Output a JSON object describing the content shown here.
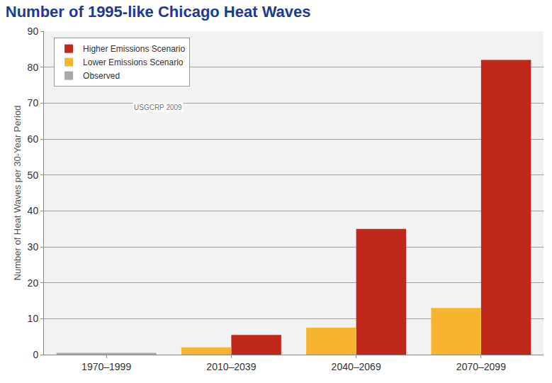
{
  "chart_data": {
    "type": "bar",
    "title": "Number of 1995-like Chicago Heat Waves",
    "y_label": "Number of Heat Waves per 30-Year Period",
    "categories": [
      "1970–1999",
      "2010–2039",
      "2040–2069",
      "2070–2099"
    ],
    "series": [
      {
        "name": "Higher Emissions Scenario",
        "color": "#c0281c",
        "values": [
          null,
          5.5,
          35,
          82
        ]
      },
      {
        "name": "Lower Emissions Scenario",
        "color": "#f7b52f",
        "values": [
          null,
          2,
          7.5,
          13
        ]
      },
      {
        "name": "Observed",
        "color": "#a8a8a8",
        "values": [
          0.5,
          null,
          null,
          null
        ]
      }
    ],
    "annotations": [
      "USGCRP 2009"
    ],
    "ylim": [
      0,
      90
    ],
    "yticks": [
      0,
      10,
      20,
      30,
      40,
      50,
      60,
      70,
      80,
      90
    ],
    "grid": true,
    "legend": "upper left"
  }
}
